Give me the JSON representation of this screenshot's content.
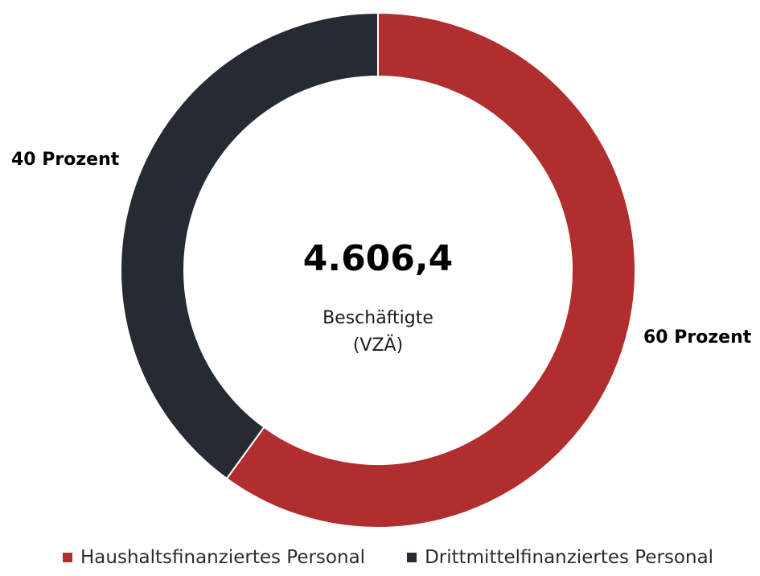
{
  "chart_data": {
    "type": "pie",
    "variant": "donut",
    "total": {
      "value": "4.606,4",
      "caption_line1": "Beschäftigte",
      "caption_line2": "(VZÄ)"
    },
    "slices": [
      {
        "name": "Haushaltsfinanziertes Personal",
        "percent": 60,
        "label": "60 Prozent",
        "color": "#b12e2f"
      },
      {
        "name": "Drittmittelfinanziertes Personal",
        "percent": 40,
        "label": "40 Prozent",
        "color": "#262a32"
      }
    ],
    "legend_position": "bottom-left"
  }
}
